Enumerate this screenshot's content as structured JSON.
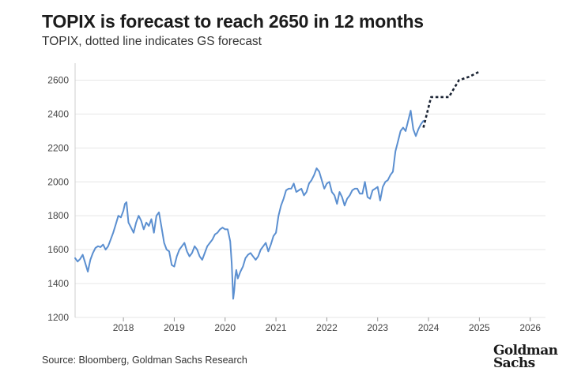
{
  "header": {
    "title": "TOPIX is forecast to reach 2650 in 12 months",
    "subtitle": "TOPIX, dotted line indicates GS forecast"
  },
  "footer": {
    "source": "Source: Bloomberg, Goldman Sachs Research",
    "logo_line1": "Goldman",
    "logo_line2": "Sachs"
  },
  "colors": {
    "series": "#5b8fd0",
    "forecast": "#1a2333",
    "grid": "#e6e6e6",
    "text": "#1c1c1c"
  },
  "chart_data": {
    "type": "line",
    "title": "TOPIX is forecast to reach 2650 in 12 months",
    "subtitle": "TOPIX, dotted line indicates GS forecast",
    "xlabel": "",
    "ylabel": "",
    "xlim": [
      2017.05,
      2026.3
    ],
    "ylim": [
      1200,
      2700
    ],
    "yticks": [
      1200,
      1400,
      1600,
      1800,
      2000,
      2200,
      2400,
      2600
    ],
    "xticks": [
      2018,
      2019,
      2020,
      2021,
      2022,
      2023,
      2024,
      2025,
      2026
    ],
    "grid": true,
    "series": [
      {
        "name": "TOPIX",
        "style": "solid",
        "x": [
          2017.05,
          2017.1,
          2017.15,
          2017.2,
          2017.25,
          2017.3,
          2017.35,
          2017.4,
          2017.45,
          2017.5,
          2017.55,
          2017.6,
          2017.65,
          2017.7,
          2017.75,
          2017.8,
          2017.85,
          2017.9,
          2017.95,
          2018.0,
          2018.03,
          2018.06,
          2018.1,
          2018.15,
          2018.2,
          2018.25,
          2018.3,
          2018.35,
          2018.4,
          2018.45,
          2018.5,
          2018.55,
          2018.6,
          2018.65,
          2018.7,
          2018.75,
          2018.8,
          2018.85,
          2018.9,
          2018.95,
          2019.0,
          2019.05,
          2019.1,
          2019.15,
          2019.2,
          2019.25,
          2019.3,
          2019.35,
          2019.4,
          2019.45,
          2019.5,
          2019.55,
          2019.6,
          2019.65,
          2019.7,
          2019.75,
          2019.8,
          2019.85,
          2019.9,
          2019.95,
          2020.0,
          2020.05,
          2020.1,
          2020.13,
          2020.16,
          2020.18,
          2020.2,
          2020.22,
          2020.25,
          2020.3,
          2020.35,
          2020.4,
          2020.45,
          2020.5,
          2020.55,
          2020.6,
          2020.65,
          2020.7,
          2020.75,
          2020.8,
          2020.85,
          2020.9,
          2020.95,
          2021.0,
          2021.05,
          2021.1,
          2021.15,
          2021.2,
          2021.25,
          2021.3,
          2021.35,
          2021.4,
          2021.45,
          2021.5,
          2021.55,
          2021.6,
          2021.65,
          2021.7,
          2021.75,
          2021.8,
          2021.85,
          2021.9,
          2021.95,
          2022.0,
          2022.05,
          2022.1,
          2022.15,
          2022.2,
          2022.25,
          2022.3,
          2022.35,
          2022.4,
          2022.45,
          2022.5,
          2022.55,
          2022.6,
          2022.65,
          2022.7,
          2022.75,
          2022.8,
          2022.85,
          2022.9,
          2022.95,
          2023.0,
          2023.05,
          2023.1,
          2023.15,
          2023.2,
          2023.25,
          2023.3,
          2023.35,
          2023.4,
          2023.45,
          2023.5,
          2023.55,
          2023.6,
          2023.65,
          2023.7,
          2023.75,
          2023.8,
          2023.85,
          2023.9
        ],
        "y": [
          1550,
          1530,
          1545,
          1570,
          1520,
          1470,
          1540,
          1580,
          1610,
          1620,
          1615,
          1630,
          1600,
          1620,
          1660,
          1700,
          1750,
          1800,
          1790,
          1830,
          1870,
          1880,
          1760,
          1730,
          1700,
          1760,
          1800,
          1770,
          1720,
          1760,
          1740,
          1780,
          1700,
          1800,
          1820,
          1730,
          1640,
          1600,
          1590,
          1510,
          1500,
          1560,
          1600,
          1620,
          1640,
          1590,
          1560,
          1580,
          1620,
          1600,
          1560,
          1540,
          1580,
          1620,
          1640,
          1660,
          1690,
          1700,
          1720,
          1730,
          1720,
          1720,
          1650,
          1520,
          1310,
          1360,
          1440,
          1480,
          1430,
          1470,
          1500,
          1550,
          1570,
          1580,
          1560,
          1540,
          1560,
          1600,
          1620,
          1640,
          1590,
          1630,
          1680,
          1700,
          1800,
          1860,
          1900,
          1950,
          1960,
          1960,
          1990,
          1940,
          1950,
          1960,
          1920,
          1940,
          1990,
          2010,
          2040,
          2080,
          2060,
          2010,
          1960,
          1990,
          2000,
          1940,
          1920,
          1870,
          1940,
          1910,
          1860,
          1900,
          1920,
          1950,
          1960,
          1960,
          1930,
          1930,
          2000,
          1910,
          1900,
          1950,
          1960,
          1970,
          1890,
          1970,
          2000,
          2010,
          2040,
          2060,
          2180,
          2240,
          2300,
          2320,
          2300,
          2360,
          2420,
          2310,
          2270,
          2310,
          2340,
          2360
        ]
      },
      {
        "name": "GS forecast",
        "style": "dotted",
        "x": [
          2023.9,
          2024.05,
          2024.15,
          2024.4,
          2024.6,
          2024.8,
          2025.0
        ],
        "y": [
          2320,
          2500,
          2500,
          2500,
          2600,
          2620,
          2650
        ]
      }
    ]
  }
}
